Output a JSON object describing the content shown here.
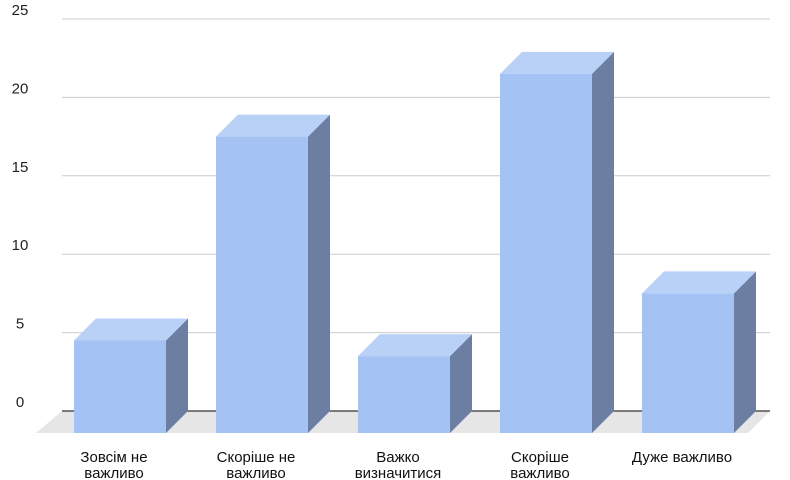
{
  "chart_data": {
    "type": "bar",
    "style": "3d-column",
    "categories": [
      [
        "Зовсім не",
        "важливо"
      ],
      [
        "Скоріше не",
        "важливо"
      ],
      [
        "Важко",
        "визначитися"
      ],
      [
        "Скоріше",
        "важливо"
      ],
      [
        "Дуже важливо"
      ]
    ],
    "values": [
      4,
      17,
      3,
      21,
      7
    ],
    "title": "",
    "xlabel": "",
    "ylabel": "",
    "ylim": [
      0,
      25
    ],
    "yticks": [
      0,
      5,
      10,
      15,
      20,
      25
    ],
    "grid": true,
    "legend": "none",
    "colors": {
      "bar_front": "#a4c2f4",
      "bar_top": "#b9d0f7",
      "bar_side": "#6c7fa3",
      "floor": "#e6e6e6",
      "gridline": "#cccccc",
      "axis": "#333333"
    }
  }
}
